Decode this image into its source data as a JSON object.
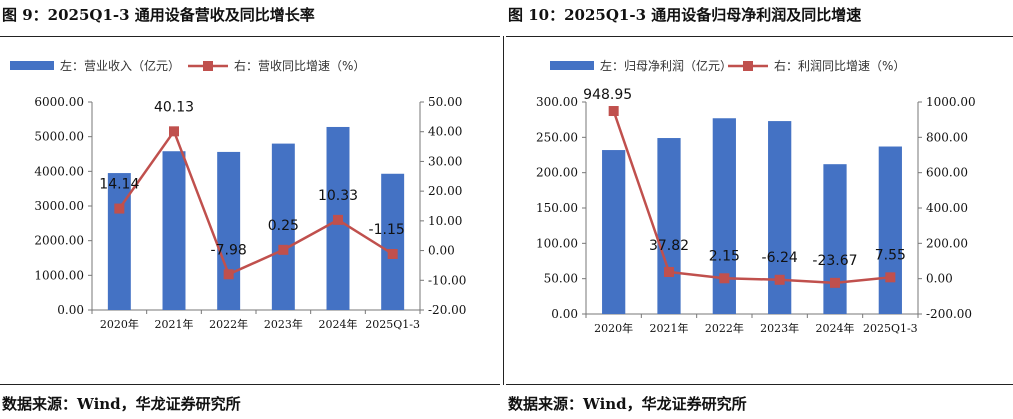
{
  "figures": [
    {
      "title": "图 9：2025Q1-3 通用设备营收及同比增长率",
      "source": "数据来源：Wind，华龙证券研究所"
    },
    {
      "title": "图 10：2025Q1-3 通用设备归母净利润及同比增速",
      "source": "数据来源：Wind，华龙证券研究所"
    }
  ],
  "colors": {
    "bar": "#4472C4",
    "line": "#C0504D"
  },
  "chart_data": [
    {
      "type": "bar+line",
      "title": "图 9：2025Q1-3 通用设备营收及同比增长率",
      "categories": [
        "2020年",
        "2021年",
        "2022年",
        "2023年",
        "2024年",
        "2025Q1-3"
      ],
      "series": [
        {
          "name": "左：营业收入（亿元）",
          "type": "bar",
          "axis": "left",
          "values": [
            3950,
            4580,
            4560,
            4800,
            5280,
            3930
          ]
        },
        {
          "name": "右：营收同比增速（%）",
          "type": "line",
          "axis": "right",
          "values": [
            14.14,
            40.13,
            -7.98,
            0.25,
            10.33,
            -1.15
          ]
        }
      ],
      "data_labels": [
        "14.14",
        "40.13",
        "-7.98",
        "0.25",
        "10.33",
        "-1.15"
      ],
      "y_left": {
        "min": 0,
        "max": 6000,
        "step": 1000,
        "ticks": [
          "0.00",
          "1000.00",
          "2000.00",
          "3000.00",
          "4000.00",
          "5000.00",
          "6000.00"
        ]
      },
      "y_right": {
        "min": -20,
        "max": 50,
        "step": 10,
        "ticks": [
          "-20.00",
          "-10.00",
          "0.00",
          "10.00",
          "20.00",
          "30.00",
          "40.00",
          "50.00"
        ]
      },
      "legend": [
        "左：营业收入（亿元）",
        "右：营收同比增速（%）"
      ]
    },
    {
      "type": "bar+line",
      "title": "图 10：2025Q1-3 通用设备归母净利润及同比增速",
      "categories": [
        "2020年",
        "2021年",
        "2022年",
        "2023年",
        "2024年",
        "2025Q1-3"
      ],
      "series": [
        {
          "name": "左：归母净利润（亿元）",
          "type": "bar",
          "axis": "left",
          "values": [
            232,
            249,
            277,
            273,
            212,
            237
          ]
        },
        {
          "name": "右：利润同比增速（%）",
          "type": "line",
          "axis": "right",
          "values": [
            948.95,
            37.82,
            2.15,
            -6.24,
            -23.67,
            7.55
          ]
        }
      ],
      "data_labels": [
        "948.95",
        "37.82",
        "2.15",
        "-6.24",
        "-23.67",
        "7.55"
      ],
      "y_left": {
        "min": 0,
        "max": 300,
        "step": 50,
        "ticks": [
          "0.00",
          "50.00",
          "100.00",
          "150.00",
          "200.00",
          "250.00",
          "300.00"
        ]
      },
      "y_right": {
        "min": -200,
        "max": 1000,
        "step": 200,
        "ticks": [
          "-200.00",
          "0.00",
          "200.00",
          "400.00",
          "600.00",
          "800.00",
          "1000.00"
        ]
      },
      "legend": [
        "左：归母净利润（亿元）",
        "右：利润同比增速（%）"
      ]
    }
  ]
}
